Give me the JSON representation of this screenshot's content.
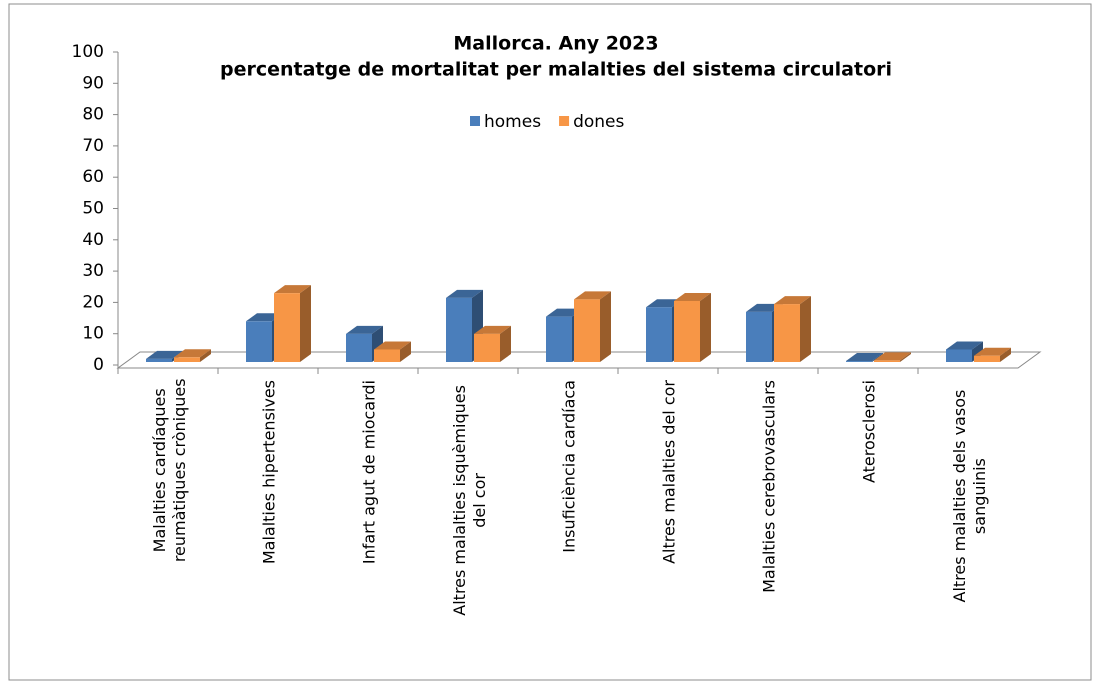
{
  "chart_data": {
    "type": "bar3d",
    "title": [
      "Mallorca. Any 2023",
      "percentatge de mortalitat per malalties del sistema circulatori"
    ],
    "categories": [
      "Malalties cardíaques reumàtiques cròniques",
      "Malalties hipertensives",
      "Infart agut de miocardi",
      "Altres malalties isquèmiques del cor",
      "Insuficiència cardíaca",
      "Altres malalties del cor",
      "Malalties cerebrovasculars",
      "Aterosclerosi",
      "Altres malalties dels vasos sanguinis"
    ],
    "series": [
      {
        "name": "homes",
        "color": "#4a7ebb",
        "values": [
          1,
          13,
          9,
          20.5,
          14.5,
          17.5,
          16,
          0.3,
          4
        ]
      },
      {
        "name": "dones",
        "color": "#f79646",
        "values": [
          1.5,
          22,
          4,
          9,
          20,
          19.5,
          18.5,
          0.5,
          2
        ]
      }
    ],
    "ylim": [
      0,
      100
    ],
    "yticks": [
      0,
      10,
      20,
      30,
      40,
      50,
      60,
      70,
      80,
      90,
      100
    ],
    "legend": "top"
  }
}
